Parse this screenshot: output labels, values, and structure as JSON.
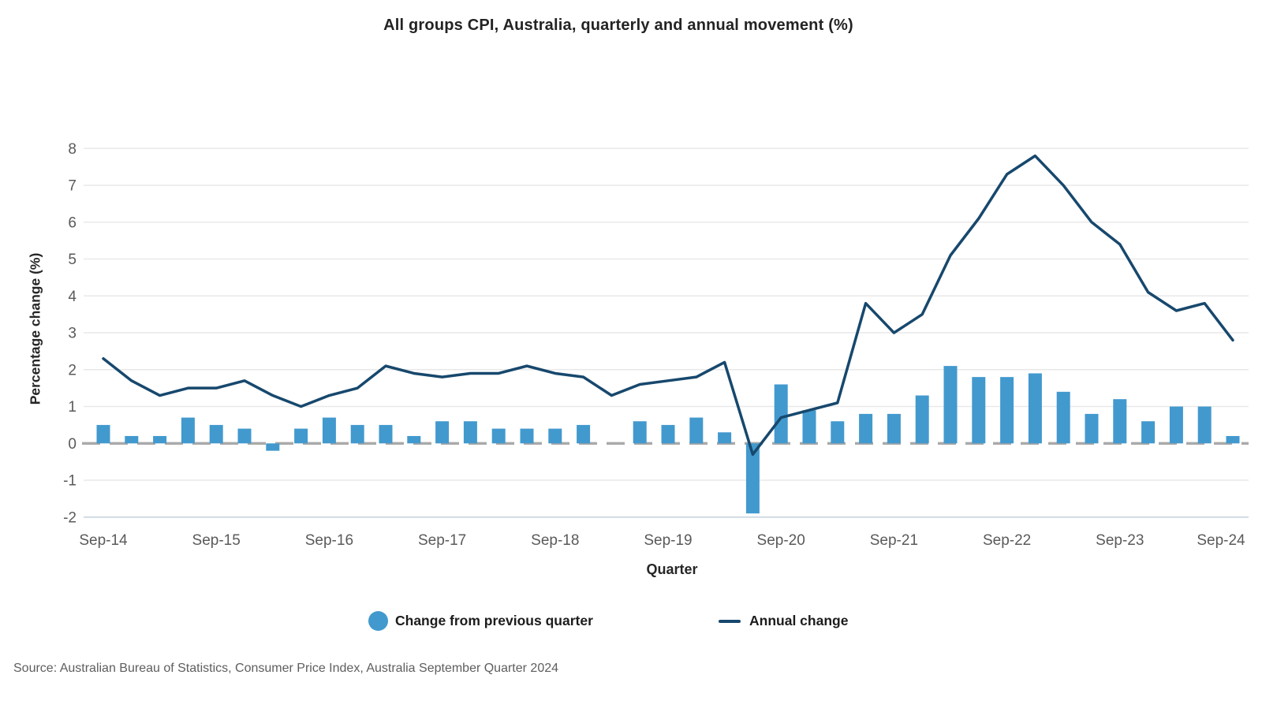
{
  "page": {
    "background": "#ffffff"
  },
  "chart_data": {
    "type": "bar+line",
    "title": "All groups CPI, Australia, quarterly and annual movement (%)",
    "xlabel": "Quarter",
    "ylabel": "Percentage change (%)",
    "ylim": [
      -2,
      8
    ],
    "y_ticks": [
      8,
      7,
      6,
      5,
      4,
      3,
      2,
      1,
      0,
      -1,
      -2
    ],
    "grid": true,
    "zero_baseline_style": "dashed",
    "legend_position": "bottom",
    "x_tick_every": 4,
    "x_tick_labels": [
      "Sep-14",
      "Sep-15",
      "Sep-16",
      "Sep-17",
      "Sep-18",
      "Sep-19",
      "Sep-20",
      "Sep-21",
      "Sep-22",
      "Sep-23",
      "Sep-24"
    ],
    "categories": [
      "Sep-14",
      "Dec-14",
      "Mar-15",
      "Jun-15",
      "Sep-15",
      "Dec-15",
      "Mar-16",
      "Jun-16",
      "Sep-16",
      "Dec-16",
      "Mar-17",
      "Jun-17",
      "Sep-17",
      "Dec-17",
      "Mar-18",
      "Jun-18",
      "Sep-18",
      "Dec-18",
      "Mar-19",
      "Jun-19",
      "Sep-19",
      "Dec-19",
      "Mar-20",
      "Jun-20",
      "Sep-20",
      "Dec-20",
      "Mar-21",
      "Jun-21",
      "Sep-21",
      "Dec-21",
      "Mar-22",
      "Jun-22",
      "Sep-22",
      "Dec-22",
      "Mar-23",
      "Jun-23",
      "Sep-23",
      "Dec-23",
      "Mar-24",
      "Jun-24",
      "Sep-24"
    ],
    "series": [
      {
        "name": "Change from previous quarter",
        "type": "bar",
        "color": "#4299CE",
        "values": [
          0.5,
          0.2,
          0.2,
          0.7,
          0.5,
          0.4,
          -0.2,
          0.4,
          0.7,
          0.5,
          0.5,
          0.2,
          0.6,
          0.6,
          0.4,
          0.4,
          0.4,
          0.5,
          0.0,
          0.6,
          0.5,
          0.7,
          0.3,
          -1.9,
          1.6,
          0.9,
          0.6,
          0.8,
          0.8,
          1.3,
          2.1,
          1.8,
          1.8,
          1.9,
          1.4,
          0.8,
          1.2,
          0.6,
          1.0,
          1.0,
          0.2
        ]
      },
      {
        "name": "Annual change",
        "type": "line",
        "color": "#17486D",
        "values": [
          2.3,
          1.7,
          1.3,
          1.5,
          1.5,
          1.7,
          1.3,
          1.0,
          1.3,
          1.5,
          2.1,
          1.9,
          1.8,
          1.9,
          1.9,
          2.1,
          1.9,
          1.8,
          1.3,
          1.6,
          1.7,
          1.8,
          2.2,
          -0.3,
          0.7,
          0.9,
          1.1,
          3.8,
          3.0,
          3.5,
          5.1,
          6.1,
          7.3,
          7.8,
          7.0,
          6.0,
          5.4,
          4.1,
          3.6,
          3.8,
          2.8
        ]
      }
    ]
  },
  "source_note": "Source: Australian Bureau of Statistics, Consumer Price Index, Australia September Quarter 2024",
  "colors": {
    "bar": "#4299CE",
    "line": "#17486D",
    "grid": "#E9E9E9",
    "bottom_axis_line": "#D3DDE4",
    "zero_line": "#A9A9A9",
    "tick_text": "#5A5A5A",
    "axis_title_text": "#262626",
    "title_text": "#232323",
    "legend_text": "#1C1C1C",
    "source_text": "#5E5E5E"
  }
}
